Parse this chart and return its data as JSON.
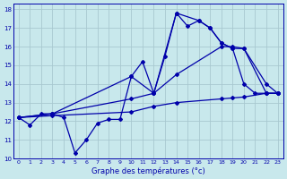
{
  "xlabel": "Graphe des températures (°c)",
  "bg_color": "#c8e8ec",
  "grid_color": "#a8c8d0",
  "line_color": "#0000aa",
  "xlim": [
    0,
    23
  ],
  "ylim": [
    10,
    18
  ],
  "xticks": [
    0,
    1,
    2,
    3,
    4,
    5,
    6,
    7,
    8,
    9,
    10,
    11,
    12,
    13,
    14,
    15,
    16,
    17,
    18,
    19,
    20,
    21,
    22,
    23
  ],
  "yticks": [
    10,
    11,
    12,
    13,
    14,
    15,
    16,
    17,
    18
  ],
  "series1_x": [
    0,
    1,
    2,
    3,
    4,
    5,
    6,
    7,
    8,
    9,
    10,
    11,
    12,
    13,
    14,
    15,
    16,
    17,
    18,
    19,
    20,
    21,
    22,
    23
  ],
  "series1_y": [
    12.2,
    11.8,
    12.4,
    12.4,
    12.2,
    10.3,
    11.0,
    11.9,
    12.1,
    12.1,
    14.4,
    15.2,
    13.5,
    15.5,
    17.8,
    17.1,
    17.4,
    17.0,
    16.2,
    15.9,
    14.0,
    13.5,
    13.5,
    13.5
  ],
  "series2_x": [
    0,
    3,
    10,
    12,
    14,
    16,
    17,
    18,
    19,
    20,
    22,
    23
  ],
  "series2_y": [
    12.2,
    12.4,
    14.4,
    13.5,
    17.8,
    17.4,
    17.0,
    16.2,
    15.9,
    15.9,
    14.0,
    13.5
  ],
  "series3_x": [
    0,
    3,
    10,
    12,
    14,
    18,
    19,
    20,
    22,
    23
  ],
  "series3_y": [
    12.2,
    12.4,
    13.2,
    13.5,
    14.5,
    16.0,
    16.0,
    15.9,
    13.5,
    13.5
  ],
  "series4_x": [
    0,
    3,
    10,
    12,
    14,
    18,
    19,
    20,
    22,
    23
  ],
  "series4_y": [
    12.2,
    12.3,
    12.5,
    12.8,
    13.0,
    13.2,
    13.25,
    13.3,
    13.5,
    13.5
  ]
}
